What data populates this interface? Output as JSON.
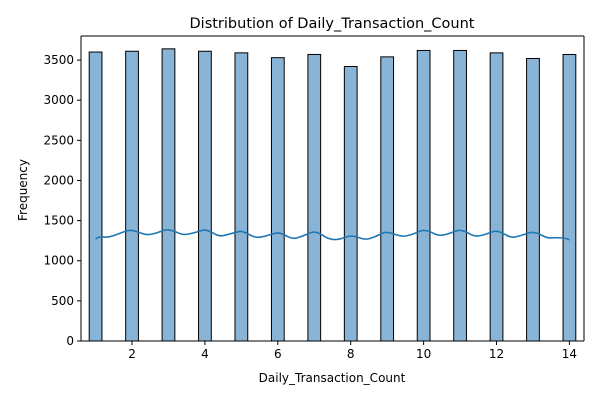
{
  "chart_data": {
    "type": "histogram",
    "title": "Distribution of Daily_Transaction_Count",
    "xlabel": "Daily_Transaction_Count",
    "ylabel": "Frequency",
    "xlim": [
      0.6,
      14.4
    ],
    "ylim": [
      0,
      3800
    ],
    "x_ticks": [
      2,
      4,
      6,
      8,
      10,
      12,
      14
    ],
    "y_ticks": [
      0,
      500,
      1000,
      1500,
      2000,
      2500,
      3000,
      3500
    ],
    "bins": [
      {
        "x": 1,
        "value": 3600
      },
      {
        "x": 2,
        "value": 3610
      },
      {
        "x": 3,
        "value": 3640
      },
      {
        "x": 4,
        "value": 3610
      },
      {
        "x": 5,
        "value": 3590
      },
      {
        "x": 6,
        "value": 3530
      },
      {
        "x": 7,
        "value": 3570
      },
      {
        "x": 8,
        "value": 3420
      },
      {
        "x": 9,
        "value": 3540
      },
      {
        "x": 10,
        "value": 3620
      },
      {
        "x": 11,
        "value": 3620
      },
      {
        "x": 12,
        "value": 3590
      },
      {
        "x": 13,
        "value": 3520
      },
      {
        "x": 14,
        "value": 3570
      }
    ],
    "bin_width": 0.35,
    "kde": {
      "x": [
        1.0,
        1.1,
        1.35,
        1.6,
        1.85,
        2.0,
        2.15,
        2.4,
        2.65,
        2.9,
        3.0,
        3.15,
        3.4,
        3.65,
        3.9,
        4.0,
        4.15,
        4.4,
        4.65,
        4.9,
        5.0,
        5.15,
        5.4,
        5.65,
        5.9,
        6.0,
        6.15,
        6.4,
        6.65,
        6.9,
        7.0,
        7.15,
        7.4,
        7.65,
        7.9,
        8.0,
        8.15,
        8.4,
        8.65,
        8.9,
        9.0,
        9.15,
        9.4,
        9.65,
        9.9,
        10.0,
        10.15,
        10.4,
        10.65,
        10.9,
        11.0,
        11.15,
        11.4,
        11.65,
        11.9,
        12.0,
        12.15,
        12.4,
        12.65,
        12.9,
        13.0,
        13.15,
        13.4,
        13.65,
        13.9,
        14.0
      ],
      "y": [
        1270,
        1300,
        1290,
        1330,
        1375,
        1380,
        1360,
        1320,
        1340,
        1385,
        1385,
        1370,
        1320,
        1340,
        1375,
        1385,
        1365,
        1300,
        1330,
        1360,
        1370,
        1340,
        1285,
        1305,
        1340,
        1350,
        1330,
        1270,
        1300,
        1350,
        1360,
        1340,
        1270,
        1260,
        1300,
        1310,
        1300,
        1260,
        1295,
        1350,
        1355,
        1340,
        1300,
        1320,
        1370,
        1380,
        1370,
        1310,
        1330,
        1375,
        1380,
        1365,
        1300,
        1320,
        1365,
        1370,
        1350,
        1285,
        1310,
        1350,
        1355,
        1340,
        1280,
        1290,
        1280,
        1260
      ]
    },
    "colors": {
      "bar_fill": "#8ab4d5",
      "bar_edge": "#000000",
      "kde_line": "#1f77b4",
      "axis": "#000000"
    },
    "grid": false,
    "legend": "none"
  }
}
